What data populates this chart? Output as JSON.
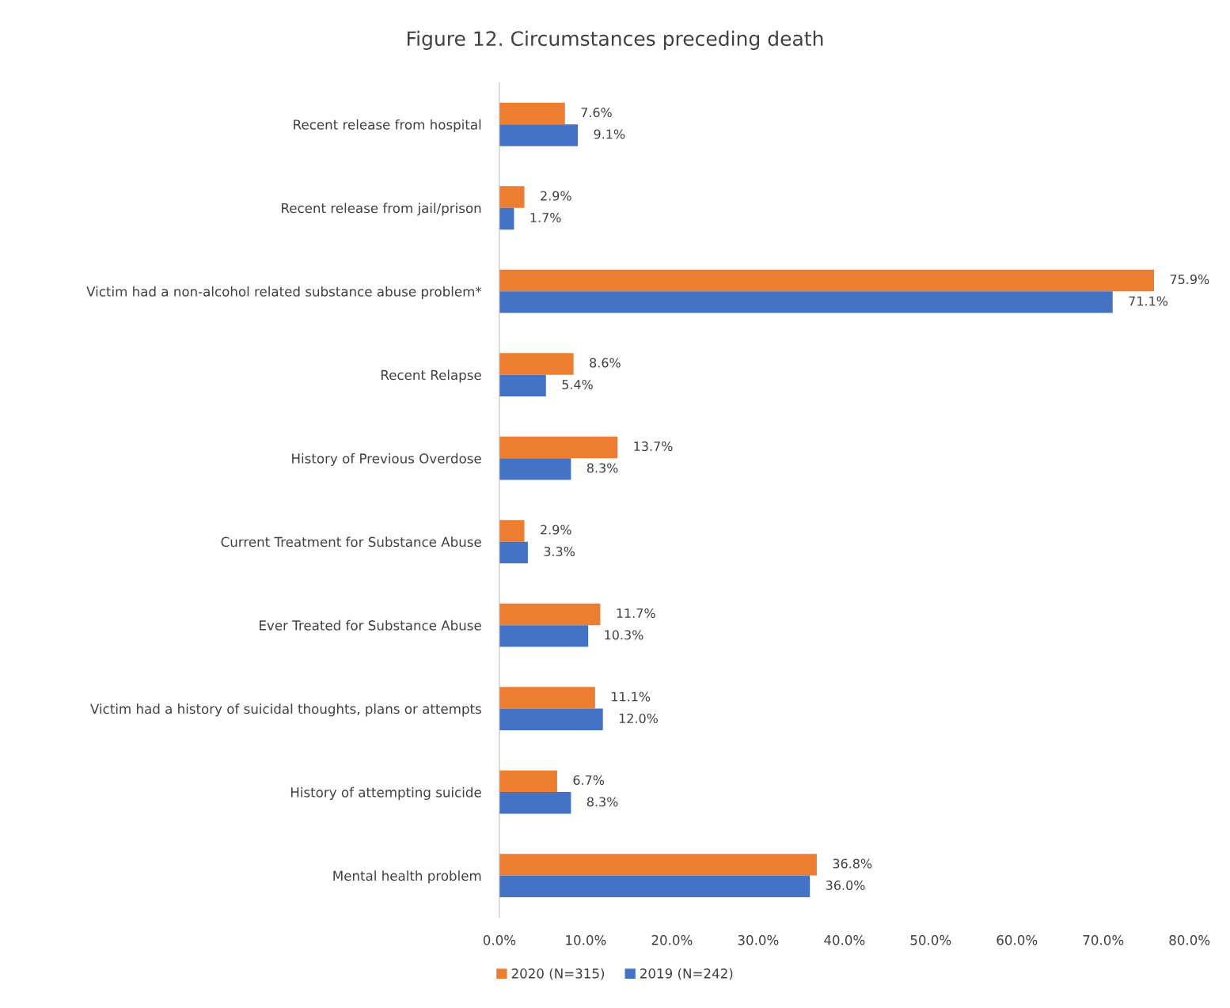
{
  "chart_data": {
    "type": "bar",
    "orientation": "horizontal",
    "title": "Figure 12. Circumstances preceding death",
    "categories": [
      "Recent release from hospital",
      "Recent release from jail/prison",
      "Victim had a non-alcohol related substance abuse problem*",
      "Recent Relapse",
      "History of Previous Overdose",
      "Current Treatment for Substance Abuse",
      "Ever Treated for Substance Abuse",
      "Victim had a history of suicidal thoughts, plans or attempts",
      "History of attempting suicide",
      "Mental health problem"
    ],
    "series": [
      {
        "name": "2020 (N=315)",
        "color": "#ed7d31",
        "values": [
          7.6,
          2.9,
          75.9,
          8.6,
          13.7,
          2.9,
          11.7,
          11.1,
          6.7,
          36.8
        ],
        "value_labels": [
          "7.6%",
          "2.9%",
          "75.9%",
          "8.6%",
          "13.7%",
          "2.9%",
          "11.7%",
          "11.1%",
          "6.7%",
          "36.8%"
        ]
      },
      {
        "name": "2019 (N=242)",
        "color": "#4472c4",
        "values": [
          9.1,
          1.7,
          71.1,
          5.4,
          8.3,
          3.3,
          10.3,
          12.0,
          8.3,
          36.0
        ],
        "value_labels": [
          "9.1%",
          "1.7%",
          "71.1%",
          "5.4%",
          "8.3%",
          "3.3%",
          "10.3%",
          "12.0%",
          "8.3%",
          "36.0%"
        ]
      }
    ],
    "xlim": [
      0,
      80
    ],
    "xticks": [
      {
        "value": 0,
        "label": "0.0%"
      },
      {
        "value": 10,
        "label": "10.0%"
      },
      {
        "value": 20,
        "label": "20.0%"
      },
      {
        "value": 30,
        "label": "30.0%"
      },
      {
        "value": 40,
        "label": "40.0%"
      },
      {
        "value": 50,
        "label": "50.0%"
      },
      {
        "value": 60,
        "label": "60.0%"
      },
      {
        "value": 70,
        "label": "70.0%"
      },
      {
        "value": 80,
        "label": "80.0%"
      }
    ],
    "grid": false,
    "legend": "bottom"
  }
}
